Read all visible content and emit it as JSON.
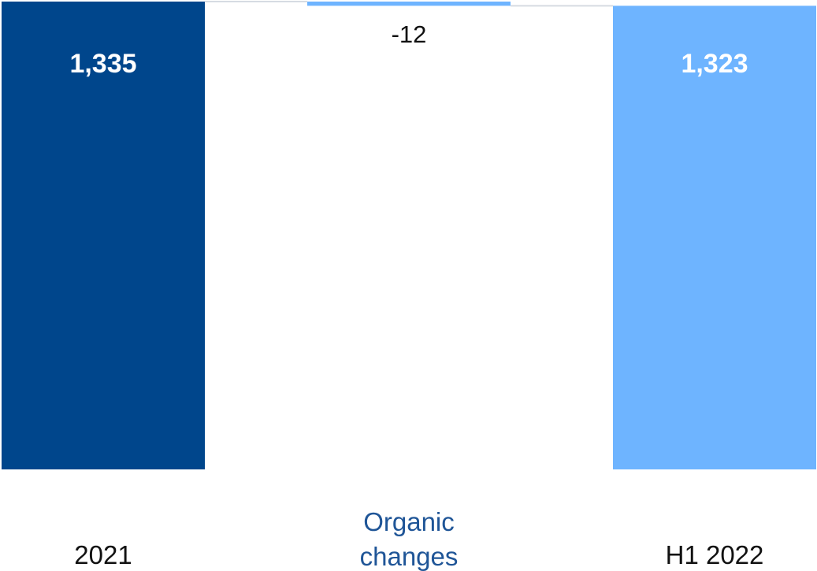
{
  "chart_data": {
    "type": "waterfall",
    "categories": [
      "2021",
      "Organic\nchanges",
      "H1 2022"
    ],
    "series": [
      {
        "values": [
          1335,
          -12,
          1323
        ],
        "data_labels": [
          "1,335",
          "-12",
          "1,323"
        ],
        "kinds": [
          "total",
          "delta",
          "total"
        ]
      }
    ],
    "ylim": [
      0,
      1335
    ],
    "grid": false,
    "legend": "none",
    "colors": {
      "start_total": "#00468c",
      "delta": "#6eb4ff",
      "end_total": "#6eb4ff",
      "connector": "#d6dbe2",
      "category_label_default": "#111111",
      "category_label_delta": "#1f5597",
      "data_label_on_bar": "#ffffff",
      "data_label_outside": "#111111"
    }
  }
}
